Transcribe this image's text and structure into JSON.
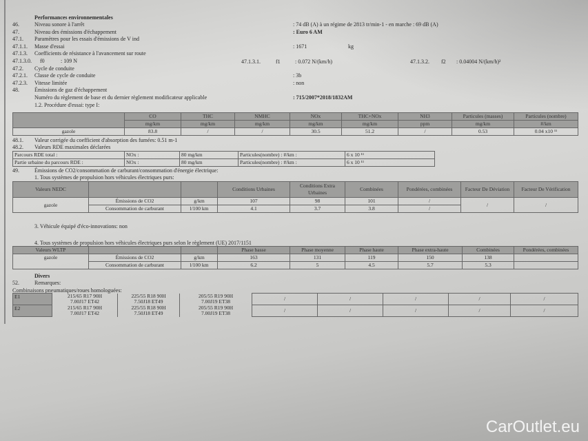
{
  "section_title": "Performances environnementales",
  "items": [
    {
      "num": "46.",
      "label": "Niveau sonore à l'arrêt",
      "value": ": 74 dB (A)   à un régime de 2813 tr/min-1 - en marche :   69 dB (A)"
    },
    {
      "num": "47.",
      "label": "Niveau des émissions d'échappement",
      "value": ": Euro 6 AM"
    },
    {
      "num": "47.1.",
      "label": "Paramètres pour les essais d'émissions de V ind",
      "value": ""
    },
    {
      "num": "47.1.1.",
      "label": "Masse d'essai",
      "value": ": 1671",
      "unit": "kg"
    },
    {
      "num": "47.1.3.",
      "label": "Coefficients de résistance à l'avancement sur route",
      "value": ""
    },
    {
      "num": "47.1.3.0.",
      "label": "f0",
      "value": ": 109 N"
    },
    {
      "num": "47.2.",
      "label": "Cycle de conduite",
      "value": ""
    },
    {
      "num": "47.2.1.",
      "label": "Classe de cycle de conduite",
      "value": ": 3b"
    },
    {
      "num": "47.2.3.",
      "label": "Vitesse limitée",
      "value": ": non"
    },
    {
      "num": "48.",
      "label": "Émissions de gaz d'échappement",
      "value": ""
    },
    {
      "num": "",
      "label": "Numéro du règlement de base et du dernier règlement modificateur applicable",
      "value": ": 715/2007*2018/1832AM"
    },
    {
      "num": "",
      "label": "1.2. Procédure d'essai: type I:",
      "value": ""
    }
  ],
  "f1": {
    "num": "47.1.3.1.",
    "label": "f1",
    "value": ": 0.072 N/(km/h)"
  },
  "f2": {
    "num": "47.1.3.2.",
    "label": "f2",
    "value": ": 0.04004 N/(km/h)²"
  },
  "type1_table": {
    "headers": [
      [
        "CO",
        "mg/km"
      ],
      [
        "THC",
        "mg/km"
      ],
      [
        "NMHC",
        "mg/km"
      ],
      [
        "NOx",
        "mg/km"
      ],
      [
        "THC+NOx",
        "mg/km"
      ],
      [
        "NH3",
        "ppm"
      ],
      [
        "Particules (masses)",
        "mg/km"
      ],
      [
        "Particules (nombre)",
        "#/km"
      ]
    ],
    "row": [
      "gazole",
      "83.8",
      "/",
      "/",
      "30.5",
      "51.2",
      "/",
      "0.53",
      "0.04 x10 ¹¹"
    ]
  },
  "item_48_1": {
    "num": "48.1.",
    "label": "Valeur corrigée du coefficient d'absorption des fumées: 0.51 m-1"
  },
  "item_48_2": {
    "num": "48.2.",
    "label": "Valeurs RDE maximales déclarées"
  },
  "rde_table": [
    [
      "Parcours RDE total :",
      "NOx :",
      "80 mg/km",
      "Particules(nombre) : #/km :",
      "6 x 10 ¹¹"
    ],
    [
      "Partie urbaine du parcours RDE   :",
      "NOx :",
      "80 mg/km",
      "Particules(nombre) : #/km :",
      "6 x 10 ¹¹"
    ]
  ],
  "item_49": {
    "num": "49.",
    "label": "Émissions de CO2/consommation de carburant/consommation d'énergie électrique:"
  },
  "sub_1": "1. Tous systèmes de propulsion hors véhicules électriques purs:",
  "nedc_table": {
    "headers": [
      "Valeurs NEDC",
      "",
      "",
      "Conditions Urbaines",
      "Conditions Extra Urbaines",
      "Combinées",
      "Pondérées, combinées",
      "Facteur De Déviation",
      "Facteur De Vérification"
    ],
    "fuel": "gazole",
    "rows": [
      [
        "Émissions de CO2",
        "g/km",
        "107",
        "98",
        "101",
        "/"
      ],
      [
        "Consommation de carburant",
        "l/100 km",
        "4.1",
        "3.7",
        "3.8",
        "/"
      ]
    ],
    "deviation": "/",
    "verification": "/"
  },
  "sub_3": "3. Véhicule équipé d'éco-innovations: non",
  "sub_4": "4. Tous systèmes de propulsion hors véhicules électriques purs selon le règlement (UE) 2017/1151",
  "wltp_table": {
    "headers": [
      "Valeurs WLTP",
      "",
      "",
      "Phase basse",
      "Phase moyenne",
      "Phase haute",
      "Phase extra-haute",
      "Combinées",
      "Pondérées, combinées"
    ],
    "fuel": "gazole",
    "rows": [
      [
        "Émissions de CO2",
        "g/km",
        "163",
        "131",
        "119",
        "150",
        "138",
        ""
      ],
      [
        "Consommation de carburant",
        "l/100 km",
        "6.2",
        "5",
        "4.5",
        "5.7",
        "5.3",
        ""
      ]
    ]
  },
  "divers": "Divers",
  "item_52": {
    "num": "52.",
    "label": "Remarques:"
  },
  "tyres_label": "Combinaisons pneumatiques/roues homologuées:",
  "tyres": [
    {
      "id": "E1",
      "c": [
        [
          "215/65 R17 90H",
          "7.00J17 ET42"
        ],
        [
          "225/55 R18 90H",
          "7.50J18 ET49"
        ],
        [
          "205/55 R19 90H",
          "7.00J19 ET38"
        ],
        "/",
        "/",
        "/",
        "/",
        "/"
      ]
    },
    {
      "id": "E2",
      "c": [
        [
          "215/65 R17 90H",
          "7.00J17 ET42"
        ],
        [
          "225/55 R18 90H",
          "7.50J18 ET49"
        ],
        [
          "205/55 R19 90H",
          "7.00J19 ET38"
        ],
        "/",
        "/",
        "/",
        "/",
        "/"
      ]
    }
  ],
  "watermark": "CarOutlet.eu"
}
